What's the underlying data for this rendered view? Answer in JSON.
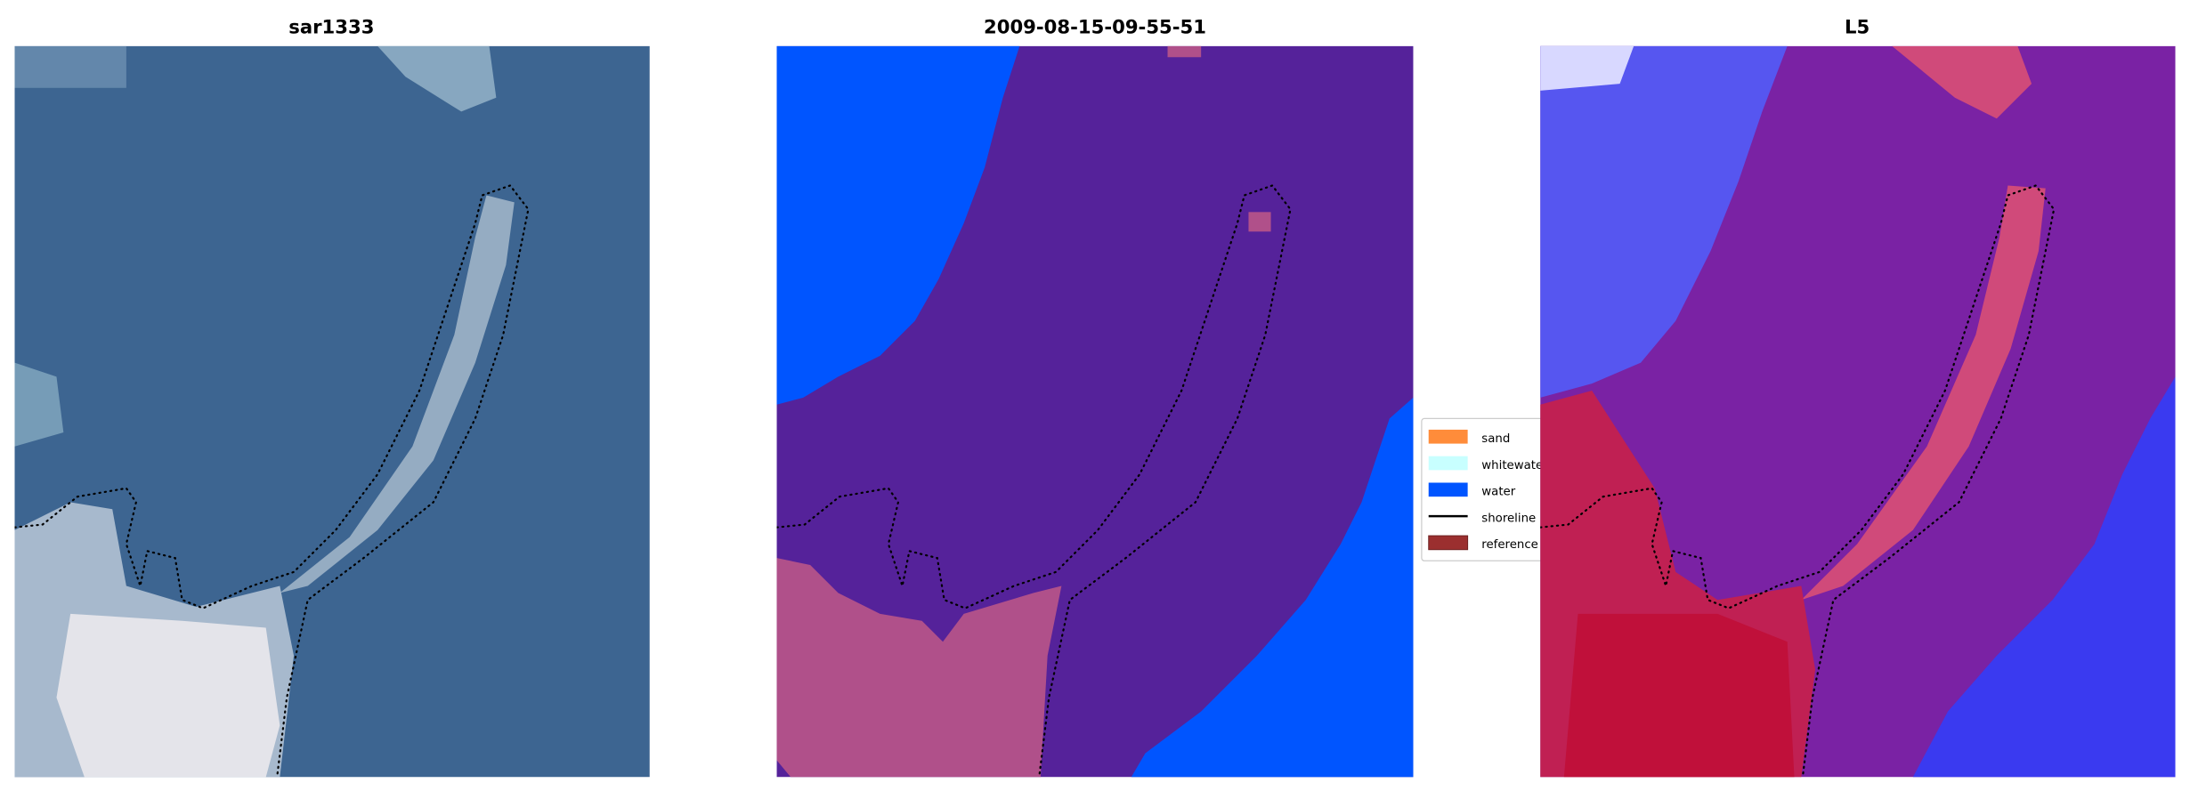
{
  "panels": [
    {
      "title": "sar1333"
    },
    {
      "title": "2009-08-15-09-55-51"
    },
    {
      "title": "L5"
    }
  ],
  "legend": {
    "placement": "center-right of middle panel",
    "items": [
      {
        "label": "sand",
        "color": "#ff8c3a",
        "kind": "patch"
      },
      {
        "label": "whitewater",
        "color": "#c8ffff",
        "kind": "patch"
      },
      {
        "label": "water",
        "color": "#0055ff",
        "kind": "patch"
      },
      {
        "label": "shoreline",
        "color": "#000000",
        "kind": "line"
      },
      {
        "label": "reference",
        "color": "#9b2f2f",
        "kind": "patch"
      }
    ]
  },
  "chart_data": {
    "type": "image",
    "panels": [
      "sar1333",
      "2009-08-15-09-55-51",
      "L5"
    ],
    "axes": "off",
    "colors": {
      "rgb_water": "#3d6591",
      "classified_land": "#55229a",
      "classified_water": "#0055ff",
      "classified_sand_overlay": "#b0508a",
      "l5_background": "#7a22a4",
      "l5_water": "#3a3af0",
      "l5_sand": "#c8204a"
    }
  }
}
